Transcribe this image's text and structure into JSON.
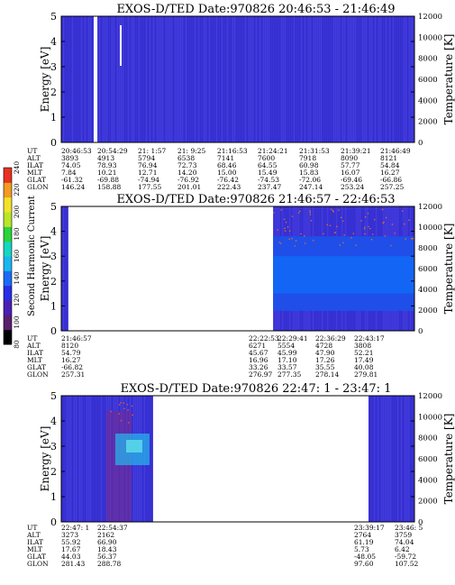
{
  "colorbar": {
    "label": "Second Harmonic Current",
    "ticks": [
      "80",
      "100",
      "120",
      "140",
      "160",
      "180",
      "200",
      "220",
      "240"
    ]
  },
  "row_labels": [
    "UT",
    "ALT",
    "ILAT",
    "MLT",
    "GLAT",
    "GLON"
  ],
  "chart_data": [
    {
      "type": "heatmap",
      "title": "EXOS-D/TED   Date:970826  20:46:53 - 21:46:49",
      "ylabel": "Energy [eV]",
      "y2label": "Temperature [K]",
      "ylim": [
        0,
        5
      ],
      "y2lim": [
        0,
        12000
      ],
      "yticks": [
        "0",
        "1",
        "2",
        "3",
        "4",
        "5"
      ],
      "y2ticks": [
        "0",
        "2000",
        "4000",
        "6000",
        "8000",
        "10000",
        "12000"
      ],
      "data_spans": [
        [
          0,
          1
        ]
      ],
      "ephemeris": [
        {
          "UT": "20:46:53",
          "ALT": "3893",
          "ILAT": "74.05",
          "MLT": "7.84",
          "GLAT": "-61.32",
          "GLON": "146.24"
        },
        {
          "UT": "20:54:29",
          "ALT": "4913",
          "ILAT": "78.93",
          "MLT": "10.21",
          "GLAT": "-69.88",
          "GLON": "158.88"
        },
        {
          "UT": "21: 1:57",
          "ALT": "5794",
          "ILAT": "76.94",
          "MLT": "12.71",
          "GLAT": "-74.94",
          "GLON": "177.55"
        },
        {
          "UT": "21: 9:25",
          "ALT": "6538",
          "ILAT": "72.73",
          "MLT": "14.20",
          "GLAT": "-76.92",
          "GLON": "201.01"
        },
        {
          "UT": "21:16:53",
          "ALT": "7141",
          "ILAT": "68.46",
          "MLT": "15.00",
          "GLAT": "-76.42",
          "GLON": "222.43"
        },
        {
          "UT": "21:24:21",
          "ALT": "7600",
          "ILAT": "64.55",
          "MLT": "15.49",
          "GLAT": "-74.53",
          "GLON": "237.47"
        },
        {
          "UT": "21:31:53",
          "ALT": "7918",
          "ILAT": "60.98",
          "MLT": "15.83",
          "GLAT": "-72.06",
          "GLON": "247.14"
        },
        {
          "UT": "21:39:21",
          "ALT": "8090",
          "ILAT": "57.77",
          "MLT": "16.07",
          "GLAT": "-69.46",
          "GLON": "253.24"
        },
        {
          "UT": "21:46:49",
          "ALT": "8121",
          "ILAT": "54.84",
          "MLT": "16.27",
          "GLAT": "-66.86",
          "GLON": "257.25"
        }
      ]
    },
    {
      "type": "heatmap",
      "title": "EXOS-D/TED   Date:970826  21:46:57 - 22:46:53",
      "ylabel": "Energy [eV]",
      "y2label": "Temperature [K]",
      "ylim": [
        0,
        5
      ],
      "y2lim": [
        0,
        12000
      ],
      "yticks": [
        "0",
        "1",
        "2",
        "3",
        "4",
        "5"
      ],
      "y2ticks": [
        "0",
        "2000",
        "4000",
        "6000",
        "8000",
        "10000",
        "12000"
      ],
      "data_spans": [
        [
          0,
          0.02
        ],
        [
          0.6,
          1
        ]
      ],
      "ephemeris": [
        {
          "UT": "21:46:57",
          "ALT": "8120",
          "ILAT": "54.79",
          "MLT": "16.27",
          "GLAT": "-66.82",
          "GLON": "257.31"
        },
        {
          "UT": "22:22:53",
          "ALT": "6271",
          "ILAT": "45.67",
          "MLT": "16.96",
          "GLAT": "33.26",
          "GLON": "276.97"
        },
        {
          "UT": "22:29:41",
          "ALT": "5554",
          "ILAT": "45.99",
          "MLT": "17.10",
          "GLAT": "33.57",
          "GLON": "277.35"
        },
        {
          "UT": "22:36:29",
          "ALT": "4728",
          "ILAT": "47.90",
          "MLT": "17.26",
          "GLAT": "35.55",
          "GLON": "278.14"
        },
        {
          "UT": "22:43:17",
          "ALT": "3808",
          "ILAT": "52.21",
          "MLT": "17.49",
          "GLAT": "40.08",
          "GLON": "279.81"
        }
      ]
    },
    {
      "type": "heatmap",
      "title": "EXOS-D/TED   Date:970826  22:47: 1 - 23:47: 1",
      "ylabel": "Energy [eV]",
      "y2label": "Temperature [K]",
      "ylim": [
        0,
        5
      ],
      "y2lim": [
        0,
        12000
      ],
      "yticks": [
        "0",
        "1",
        "2",
        "3",
        "4",
        "5"
      ],
      "y2ticks": [
        "0",
        "2000",
        "4000",
        "6000",
        "8000",
        "10000",
        "12000"
      ],
      "data_spans": [
        [
          0,
          0.26
        ],
        [
          0.87,
          1
        ]
      ],
      "ephemeris": [
        {
          "UT": "22:47: 1",
          "ALT": "3273",
          "ILAT": "55.92",
          "MLT": "17.67",
          "GLAT": "44.03",
          "GLON": "281.43"
        },
        {
          "UT": "22:54:37",
          "ALT": "2162",
          "ILAT": "66.90",
          "MLT": "18.43",
          "GLAT": "56.37",
          "GLON": "288.78"
        },
        {
          "UT": "23:39:17",
          "ALT": "2764",
          "ILAT": "61.19",
          "MLT": "5.73",
          "GLAT": "-48.05",
          "GLON": "97.60"
        },
        {
          "UT": "23:46: 5",
          "ALT": "3759",
          "ILAT": "74.04",
          "MLT": "6.42",
          "GLAT": "-59.72",
          "GLON": "107.52"
        }
      ]
    }
  ]
}
